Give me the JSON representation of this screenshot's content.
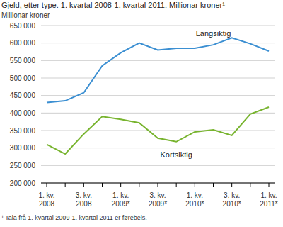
{
  "chart_data": {
    "type": "line",
    "title": "Gjeld, etter type. 1. kvartal 2008-1. kvartal 2011. Millionar kroner¹",
    "ylabel": "Millionar kroner",
    "annotations": [
      "¹ Tala frå 1. kvartal 2009-1. kvartal 2011 er førebels."
    ],
    "categories": [
      "1. kv. 2008",
      null,
      "3. kv. 2008",
      null,
      "1. kv. 2009*",
      null,
      "3. kv. 2009*",
      null,
      "1. kv. 2010*",
      null,
      "3. kv. 2010*",
      null,
      "1. kv. 2011*"
    ],
    "series": [
      {
        "name": "Langsiktig",
        "color": "#3b8fd2",
        "values": [
          430000,
          435000,
          458000,
          535000,
          572000,
          600000,
          580000,
          585000,
          585000,
          595000,
          615000,
          598000,
          577000
        ]
      },
      {
        "name": "Kortsiktig",
        "color": "#78b42f",
        "values": [
          310000,
          283000,
          340000,
          390000,
          382000,
          372000,
          328000,
          318000,
          346000,
          352000,
          336000,
          397000,
          417000
        ]
      }
    ],
    "ylim": [
      200000,
      650000
    ],
    "yticks": [
      {
        "value": 200000,
        "label": "200 000"
      },
      {
        "value": 250000,
        "label": "250 000"
      },
      {
        "value": 300000,
        "label": "300 000"
      },
      {
        "value": 350000,
        "label": "350 000"
      },
      {
        "value": 400000,
        "label": "400 000"
      },
      {
        "value": 450000,
        "label": "450 000"
      },
      {
        "value": 500000,
        "label": "500 000"
      },
      {
        "value": 550000,
        "label": "550 000"
      },
      {
        "value": 600000,
        "label": "600 000"
      },
      {
        "value": 650000,
        "label": "650 000"
      }
    ],
    "grid": true
  }
}
